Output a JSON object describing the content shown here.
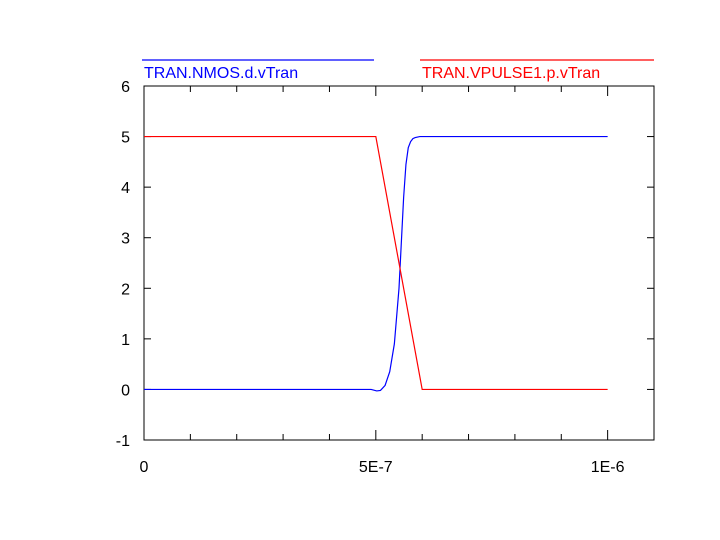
{
  "chart_data": {
    "type": "line",
    "title": "",
    "xlabel": "",
    "ylabel": "",
    "xlim": [
      0,
      1.1e-06
    ],
    "ylim": [
      -1,
      6
    ],
    "grid": false,
    "legend_placement": "top",
    "x_tick_labels": [
      {
        "value": 0,
        "label": "0"
      },
      {
        "value": 5e-07,
        "label": "5E-7"
      },
      {
        "value": 1e-06,
        "label": "1E-6"
      }
    ],
    "x_minor_ticks": [
      1e-07,
      2e-07,
      3e-07,
      4e-07,
      6e-07,
      7e-07,
      8e-07,
      9e-07
    ],
    "y_tick_labels": [
      {
        "value": -1,
        "label": "-1"
      },
      {
        "value": 0,
        "label": "0"
      },
      {
        "value": 1,
        "label": "1"
      },
      {
        "value": 2,
        "label": "2"
      },
      {
        "value": 3,
        "label": "3"
      },
      {
        "value": 4,
        "label": "4"
      },
      {
        "value": 5,
        "label": "5"
      },
      {
        "value": 6,
        "label": "6"
      }
    ],
    "series": [
      {
        "name": "TRAN.NMOS.d.vTran",
        "color": "#0000ff",
        "x": [
          0,
          4.9e-07,
          5.02e-07,
          5.1e-07,
          5.2e-07,
          5.3e-07,
          5.4e-07,
          5.5e-07,
          5.55e-07,
          5.6e-07,
          5.65e-07,
          5.7e-07,
          5.75e-07,
          5.8e-07,
          5.85e-07,
          5.9e-07,
          5.95e-07,
          6e-07,
          6.2e-07,
          1e-06
        ],
        "y": [
          0,
          0,
          -0.03,
          -0.02,
          0.08,
          0.35,
          0.9,
          2.0,
          2.9,
          3.8,
          4.45,
          4.78,
          4.9,
          4.96,
          4.98,
          4.99,
          5.0,
          5.0,
          5.0,
          5.0
        ]
      },
      {
        "name": "TRAN.VPULSE1.p.vTran",
        "color": "#ff0000",
        "x": [
          0,
          5e-07,
          6e-07,
          1e-06
        ],
        "y": [
          5,
          5,
          0,
          0
        ]
      }
    ]
  }
}
